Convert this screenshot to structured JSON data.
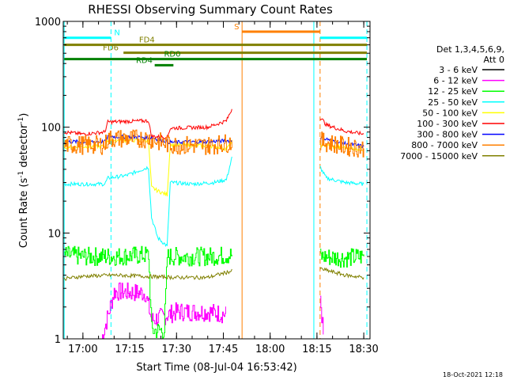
{
  "chart_data": {
    "type": "line",
    "title": "RHESSI Observing Summary Count Rates",
    "xlabel": "Start Time (08-Jul-04 16:53:42)",
    "ylabel_parts": {
      "pre": "Count Rate (s",
      "sup1": "-1",
      "mid": " detector",
      "sup2": "-1",
      "post": ")"
    },
    "footer": "18-Oct-2021 12:18",
    "x_unit": "minutes",
    "xlim": [
      "16:53:42",
      "18:32:00"
    ],
    "x_ticks": [
      {
        "label": "17:00",
        "t": "17:00"
      },
      {
        "label": "17:15",
        "t": "17:15"
      },
      {
        "label": "17:30",
        "t": "17:30"
      },
      {
        "label": "17:45",
        "t": "17:45"
      },
      {
        "label": "18:00",
        "t": "18:00"
      },
      {
        "label": "18:15",
        "t": "18:15"
      },
      {
        "label": "18:30",
        "t": "18:30"
      }
    ],
    "y_scale": "log",
    "ylim": [
      1,
      1000
    ],
    "y_ticks": [
      {
        "label": "1",
        "v": 1
      },
      {
        "label": "10",
        "v": 10
      },
      {
        "label": "100",
        "v": 100
      },
      {
        "label": "1000",
        "v": 1000
      }
    ],
    "legend": {
      "placement": "right",
      "header": [
        "Det 1,3,4,5,6,9,",
        "Att 0"
      ]
    },
    "series": [
      {
        "name": "3 - 6 keV",
        "color": "#000000",
        "points": []
      },
      {
        "name": "6 - 12 keV",
        "color": "#ff00ff",
        "points": [
          [
            "17:06",
            1.0
          ],
          [
            "17:10",
            2.8
          ],
          [
            "17:20",
            2.7
          ],
          [
            "17:22",
            1.5
          ],
          [
            "17:30",
            1.8
          ],
          [
            "17:40",
            1.8
          ],
          [
            "17:46",
            1.7
          ],
          [
            "18:16",
            2.5
          ],
          [
            "18:17",
            1.1
          ]
        ]
      },
      {
        "name": "12 - 25 keV",
        "color": "#00ff00",
        "points": [
          [
            "16:54",
            6.2
          ],
          [
            "17:00",
            6.0
          ],
          [
            "17:10",
            6.0
          ],
          [
            "17:21",
            6.2
          ],
          [
            "17:22",
            1.2
          ],
          [
            "17:26",
            1.2
          ],
          [
            "17:27",
            6.0
          ],
          [
            "17:40",
            6.0
          ],
          [
            "17:48",
            6.2
          ],
          [
            "18:16",
            6.0
          ],
          [
            "18:24",
            5.8
          ],
          [
            "18:30",
            6.0
          ]
        ]
      },
      {
        "name": "25 - 50 keV",
        "color": "#00ffff",
        "points": [
          [
            "16:54",
            29
          ],
          [
            "17:00",
            29
          ],
          [
            "17:07",
            29
          ],
          [
            "17:08",
            33
          ],
          [
            "17:14",
            35
          ],
          [
            "17:21",
            42
          ],
          [
            "17:22",
            14
          ],
          [
            "17:24",
            9
          ],
          [
            "17:27",
            7.5
          ],
          [
            "17:28",
            30
          ],
          [
            "17:35",
            29
          ],
          [
            "17:42",
            30
          ],
          [
            "17:46",
            32
          ],
          [
            "17:48",
            55
          ],
          [
            "18:16",
            42
          ],
          [
            "18:18",
            33
          ],
          [
            "18:24",
            30
          ],
          [
            "18:30",
            29
          ]
        ]
      },
      {
        "name": "50 - 100 keV",
        "color": "#ffff00",
        "points": [
          [
            "16:54",
            65
          ],
          [
            "17:07",
            66
          ],
          [
            "17:08",
            75
          ],
          [
            "17:21",
            75
          ],
          [
            "17:22",
            27
          ],
          [
            "17:24",
            25
          ],
          [
            "17:27",
            23
          ],
          [
            "17:28",
            68
          ],
          [
            "17:40",
            67
          ],
          [
            "17:44",
            65
          ],
          [
            "17:46",
            62
          ],
          [
            "17:48",
            75
          ],
          [
            "18:16",
            68
          ],
          [
            "18:24",
            64
          ],
          [
            "18:30",
            62
          ]
        ]
      },
      {
        "name": "100 - 300 keV",
        "color": "#ff0000",
        "points": [
          [
            "16:54",
            90
          ],
          [
            "17:00",
            86
          ],
          [
            "17:07",
            90
          ],
          [
            "17:08",
            112
          ],
          [
            "17:21",
            115
          ],
          [
            "17:22",
            82
          ],
          [
            "17:27",
            80
          ],
          [
            "17:28",
            98
          ],
          [
            "17:40",
            100
          ],
          [
            "17:46",
            115
          ],
          [
            "17:48",
            155
          ],
          [
            "18:16",
            125
          ],
          [
            "18:18",
            105
          ],
          [
            "18:24",
            92
          ],
          [
            "18:30",
            86
          ]
        ]
      },
      {
        "name": "300 - 800 keV",
        "color": "#0000ff",
        "points": [
          [
            "16:54",
            73
          ],
          [
            "17:07",
            73
          ],
          [
            "17:08",
            82
          ],
          [
            "17:21",
            80
          ],
          [
            "17:22",
            80
          ],
          [
            "17:28",
            72
          ],
          [
            "17:40",
            73
          ],
          [
            "17:48",
            75
          ],
          [
            "18:16",
            80
          ],
          [
            "18:24",
            70
          ],
          [
            "18:30",
            66
          ]
        ]
      },
      {
        "name": "800 - 7000 keV",
        "color": "#ff8000",
        "points": [
          [
            "16:54",
            68
          ],
          [
            "17:07",
            68
          ],
          [
            "17:08",
            78
          ],
          [
            "17:21",
            78
          ],
          [
            "17:22",
            76
          ],
          [
            "17:28",
            68
          ],
          [
            "17:40",
            67
          ],
          [
            "17:48",
            72
          ],
          [
            "18:16",
            74
          ],
          [
            "18:24",
            66
          ],
          [
            "18:30",
            63
          ]
        ]
      },
      {
        "name": "7000 - 15000 keV",
        "color": "#808000",
        "points": [
          [
            "16:54",
            3.7
          ],
          [
            "17:00",
            3.9
          ],
          [
            "17:10",
            4.0
          ],
          [
            "17:20",
            3.9
          ],
          [
            "17:30",
            3.8
          ],
          [
            "17:40",
            3.8
          ],
          [
            "17:48",
            4.4
          ],
          [
            "18:16",
            4.6
          ],
          [
            "18:24",
            4.0
          ],
          [
            "18:30",
            3.8
          ]
        ]
      }
    ],
    "annotations": [
      {
        "label": "N",
        "color": "#00ffff",
        "bars": [
          [
            "16:54",
            "17:09"
          ],
          [
            "18:16",
            "18:31"
          ]
        ],
        "level": 700
      },
      {
        "label": "S",
        "color": "#ff8000",
        "bars": [
          [
            "17:51",
            "18:16"
          ]
        ],
        "level": 800
      },
      {
        "label": "FD4",
        "color": "#808000",
        "bars": [
          [
            "16:54",
            "18:31"
          ]
        ],
        "level": 600
      },
      {
        "label": "FD6",
        "color": "#808000",
        "bars": [
          [
            "17:13",
            "18:31"
          ]
        ],
        "level": 505
      },
      {
        "label": "RD0",
        "color": "#008000",
        "bars": [
          [
            "16:54",
            "18:31"
          ]
        ],
        "level": 440
      },
      {
        "label": "RD4",
        "color": "#008000",
        "bars": [
          [
            "17:23",
            "17:29"
          ]
        ],
        "level": 385
      }
    ],
    "vertical_markers": [
      {
        "t": "16:54",
        "color": "#00ffff",
        "style": "solid"
      },
      {
        "t": "17:09",
        "color": "#00ffff",
        "style": "dashed"
      },
      {
        "t": "17:51",
        "color": "#ff8000",
        "style": "solid"
      },
      {
        "t": "18:14",
        "color": "#00ffff",
        "style": "solid"
      },
      {
        "t": "18:16",
        "color": "#ff8000",
        "style": "dashed"
      },
      {
        "t": "18:31",
        "color": "#00ffff",
        "style": "dashed"
      }
    ],
    "grid": false
  }
}
